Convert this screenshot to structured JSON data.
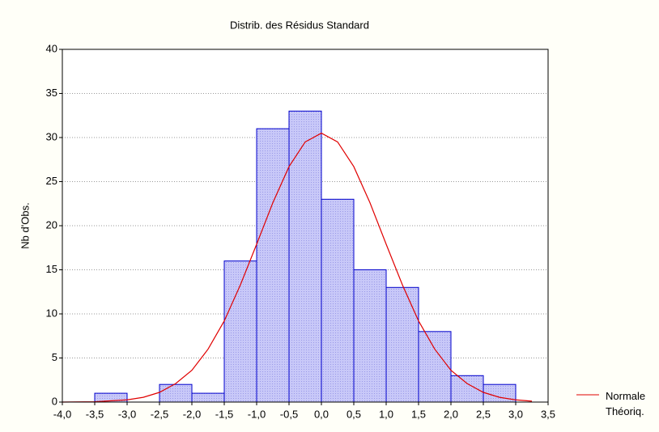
{
  "chart_data": {
    "type": "histogram",
    "title": "Distrib. des Résidus Standard",
    "y_label": "Nb d'Obs.",
    "bins": [
      -4.0,
      -3.5,
      -3.0,
      -2.5,
      -2.0,
      -1.5,
      -1.0,
      -0.5,
      0.0,
      0.5,
      1.0,
      1.5,
      2.0,
      2.5,
      3.0
    ],
    "values": [
      0,
      1,
      0,
      2,
      1,
      16,
      31,
      33,
      23,
      15,
      13,
      8,
      3,
      2
    ],
    "color": "#c8c8f8",
    "edge_color": "#0000cc",
    "xlim": [
      -4.0,
      3.5
    ],
    "xticks": [
      {
        "value": -4.0,
        "label": "-4,0"
      },
      {
        "value": -3.5,
        "label": "-3,5"
      },
      {
        "value": -3.0,
        "label": "-3,0"
      },
      {
        "value": -2.5,
        "label": "-2,5"
      },
      {
        "value": -2.0,
        "label": "-2,0"
      },
      {
        "value": -1.5,
        "label": "-1,5"
      },
      {
        "value": -1.0,
        "label": "-1,0"
      },
      {
        "value": -0.5,
        "label": "-0,5"
      },
      {
        "value": 0.0,
        "label": "0,0"
      },
      {
        "value": 0.5,
        "label": "0,5"
      },
      {
        "value": 1.0,
        "label": "1,0"
      },
      {
        "value": 1.5,
        "label": "1,5"
      },
      {
        "value": 2.0,
        "label": "2,0"
      },
      {
        "value": 2.5,
        "label": "2,5"
      },
      {
        "value": 3.0,
        "label": "3,0"
      },
      {
        "value": 3.5,
        "label": "3,5"
      }
    ],
    "ylim": [
      0,
      40
    ],
    "yticks": [
      0,
      5,
      10,
      15,
      20,
      25,
      30,
      35,
      40
    ],
    "grid": true,
    "curve": {
      "name": "Normale Théoriq.",
      "color": "#e00000",
      "x": [
        -4,
        -3.5,
        -3,
        -2.75,
        -2.5,
        -2.25,
        -2,
        -1.75,
        -1.5,
        -1.25,
        -1,
        -0.75,
        -0.5,
        -0.25,
        0,
        0.25,
        0.5,
        0.75,
        1,
        1.25,
        1.5,
        1.75,
        2,
        2.25,
        2.5,
        2.75,
        3,
        3.25
      ],
      "values": [
        0,
        0.04,
        0.25,
        0.54,
        1.1,
        2.1,
        3.6,
        6.0,
        9.2,
        13.3,
        17.9,
        22.6,
        26.7,
        29.5,
        30.5,
        29.5,
        26.7,
        22.6,
        17.9,
        13.3,
        9.2,
        6.0,
        3.6,
        2.1,
        1.1,
        0.54,
        0.25,
        0.1
      ]
    }
  }
}
